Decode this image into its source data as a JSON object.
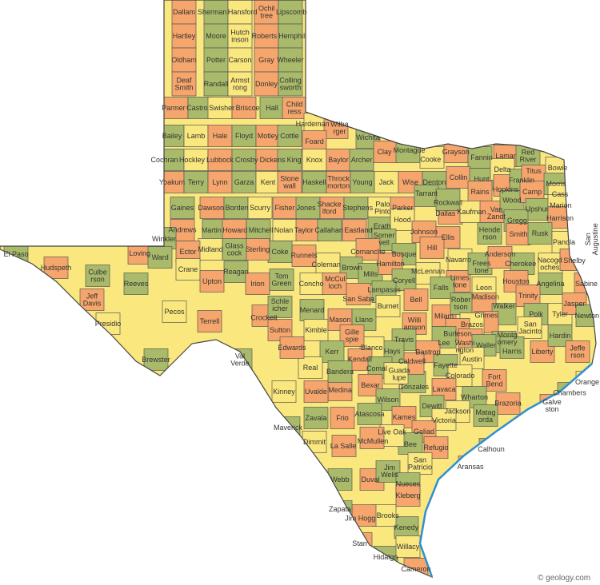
{
  "colors": {
    "orange": "#f6a66c",
    "green": "#a9bb6b",
    "yellow": "#fae77e",
    "water": "#2f8fd0",
    "border": "#555555"
  },
  "counties": [
    "Dallam",
    "Sherman",
    "Hansford",
    "Ochiltree",
    "Lipscomb",
    "Hartley",
    "Moore",
    "Hutchinson",
    "Roberts",
    "Hemphill",
    "Oldham",
    "Potter",
    "Carson",
    "Gray",
    "Wheeler",
    "Deaf Smith",
    "Randall",
    "Armstrong",
    "Donley",
    "Collingsworth",
    "Parmer",
    "Castro",
    "Swisher",
    "Briscoe",
    "Hall",
    "Childress",
    "Bailey",
    "Lamb",
    "Hale",
    "Floyd",
    "Motley",
    "Cottle",
    "Hardeman",
    "Wilbarger",
    "Wichita",
    "Foard",
    "Cochran",
    "Hockley",
    "Lubbock",
    "Crosby",
    "Dickens",
    "King",
    "Knox",
    "Baylor",
    "Archer",
    "Clay",
    "Montague",
    "Cooke",
    "Grayson",
    "Fannin",
    "Lamar",
    "Red River",
    "Bowie",
    "Yoakum",
    "Terry",
    "Lynn",
    "Garza",
    "Kent",
    "Stonewall",
    "Haskell",
    "Throckmorton",
    "Young",
    "Jack",
    "Wise",
    "Denton",
    "Collin",
    "Hunt",
    "Delta",
    "Hopkins",
    "Franklin",
    "Titus",
    "Morris",
    "Cass",
    "Rains",
    "Gaines",
    "Dawson",
    "Borden",
    "Scurry",
    "Fisher",
    "Jones",
    "Shackelford",
    "Stephens",
    "Palo Pinto",
    "Parker",
    "Tarrant",
    "Dallas",
    "Rockwall",
    "Kaufman",
    "Van Zandt",
    "Wood",
    "Camp",
    "Upshur",
    "Marion",
    "Harrison",
    "Gregg",
    "Smith",
    "Rusk",
    "Panola",
    "Andrews",
    "Martin",
    "Howard",
    "Mitchell",
    "Nolan",
    "Taylor",
    "Callahan",
    "Eastland",
    "Erath",
    "Hood",
    "Johnson",
    "Somervell",
    "Ellis",
    "Henderson",
    "Navarro",
    "Hill",
    "Bosque",
    "Comanche",
    "Brown",
    "Coleman",
    "Runnels",
    "Coke",
    "Sterling",
    "Glasscock",
    "Midland",
    "Ector",
    "Winkler",
    "Loving",
    "Ward",
    "Crane",
    "Upton",
    "Reagan",
    "Irion",
    "Tom Green",
    "Concho",
    "McCulloch",
    "Mills",
    "Hamilton",
    "Coryell",
    "McLennan",
    "Limestone",
    "Freestone",
    "Anderson",
    "Cherokee",
    "Nacogdoches",
    "Shelby",
    "San Augustine",
    "Sabine",
    "Reeves",
    "Pecos",
    "Crockett",
    "Schleicher",
    "Sutton",
    "Menard",
    "Kimble",
    "Mason",
    "Llano",
    "San Saba",
    "Lampasas",
    "Burnet",
    "Bell",
    "Falls",
    "Milam",
    "Robertson",
    "Leon",
    "Houston",
    "Angelina",
    "Trinity",
    "Polk",
    "Tyler",
    "Jasper",
    "Newton",
    "Madison",
    "Walker",
    "San Jacinto",
    "Grimes",
    "Montgomery",
    "Liberty",
    "Hardin",
    "Orange",
    "Jefferson",
    "Chambers",
    "Galveston",
    "Harris",
    "Brazos",
    "Burleson",
    "Lee",
    "Washington",
    "Waller",
    "Austin",
    "Williamson",
    "Travis",
    "Bastrop",
    "Fayette",
    "Colorado",
    "Fort Bend",
    "Wharton",
    "Brazoria",
    "Matagorda",
    "Jackson",
    "Lavaca",
    "Gonzales",
    "Caldwell",
    "Hays",
    "Blanco",
    "Gillespie",
    "Kerr",
    "Kendall",
    "Comal",
    "Guadalupe",
    "Bexar",
    "Wilson",
    "Karnes",
    "Dewitt",
    "Victoria",
    "Goliad",
    "Calhoun",
    "Refugio",
    "Bee",
    "Live Oak",
    "McMullen",
    "Atascosa",
    "Medina",
    "Bandera",
    "Real",
    "Edwards",
    "Val Verde",
    "Terrell",
    "Brewster",
    "Presidio",
    "Jeff Davis",
    "Culberson",
    "Hudspeth",
    "El Paso",
    "Kinney",
    "Uvalde",
    "Zavala",
    "Frio",
    "Maverick",
    "Dimmit",
    "La Salle",
    "Webb",
    "Duval",
    "Jim Wells",
    "San Patricio",
    "Aransas",
    "Nueces",
    "Kleberg",
    "Kenedy",
    "Brooks",
    "Jim Hogg",
    "Zapata",
    "Starr",
    "Hidalgo",
    "Willacy",
    "Cameron"
  ],
  "credit": "© geology.com"
}
